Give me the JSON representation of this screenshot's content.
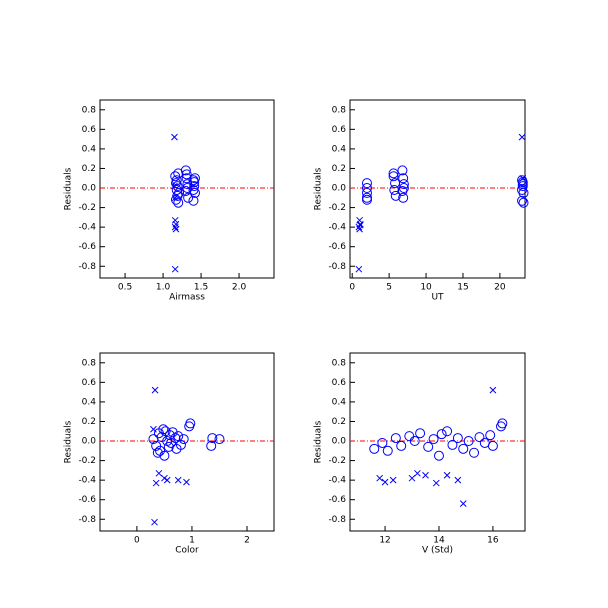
{
  "chart_data": [
    {
      "type": "scatter",
      "xlabel": "Airmass",
      "ylabel": "Residuals",
      "xlim": [
        0.17,
        2.46
      ],
      "ylim": [
        -0.92,
        0.9
      ],
      "xticks": [
        0.5,
        {
          "value": 1,
          "label": "1.0"
        },
        1.5,
        {
          "value": 2,
          "label": "2.0"
        }
      ],
      "yticks": [
        -0.8,
        -0.6,
        -0.4,
        -0.2,
        {
          "value": 0,
          "label": "0.0"
        },
        0.2,
        0.4,
        0.6,
        0.8
      ],
      "hline": 0,
      "hline_color": "#ff0000",
      "series": [
        {
          "marker": "o",
          "color": "#0000ff",
          "x": [
            1.16,
            1.17,
            1.18,
            1.19,
            1.2,
            1.17,
            1.19,
            1.21,
            1.18,
            1.2,
            1.3,
            1.31,
            1.32,
            1.3,
            1.33,
            1.31,
            1.32,
            1.4,
            1.41,
            1.42,
            1.4,
            1.41,
            1.42,
            1.4
          ],
          "values": [
            0.12,
            0.05,
            -0.02,
            -0.08,
            0.15,
            -0.12,
            0.02,
            -0.05,
            0.08,
            -0.15,
            0.18,
            0.1,
            0.04,
            -0.03,
            -0.1,
            0.14,
            0.0,
            0.08,
            0.02,
            -0.05,
            -0.13,
            0.06,
            0.1,
            -0.02
          ]
        },
        {
          "marker": "x",
          "color": "#0000ff",
          "x": [
            1.15,
            1.16,
            1.17,
            1.16,
            1.17,
            1.16,
            1.15,
            1.16
          ],
          "values": [
            0.52,
            -0.33,
            -0.37,
            -0.4,
            -0.42,
            -0.83,
            0.02,
            -0.1
          ]
        }
      ]
    },
    {
      "type": "scatter",
      "xlabel": "UT",
      "ylabel": "Residuals",
      "xlim": [
        -0.3,
        23.4
      ],
      "ylim": [
        -0.92,
        0.9
      ],
      "xticks": [
        0,
        5,
        10,
        15,
        20
      ],
      "yticks": [
        -0.8,
        -0.6,
        -0.4,
        -0.2,
        {
          "value": 0,
          "label": "0.0"
        },
        0.2,
        0.4,
        0.6,
        0.8
      ],
      "hline": 0,
      "hline_color": "#ff0000",
      "series": [
        {
          "marker": "o",
          "color": "#0000ff",
          "x": [
            2,
            2,
            2,
            2,
            2,
            5.6,
            5.8,
            5.7,
            5.9,
            5.6,
            6.8,
            6.9,
            7,
            6.8,
            6.9,
            7,
            23,
            23.1,
            23.2,
            23,
            23.1,
            23.2,
            23,
            23.1
          ],
          "values": [
            0.05,
            0.0,
            -0.05,
            -0.1,
            -0.12,
            0.12,
            0.05,
            -0.02,
            -0.08,
            0.15,
            0.18,
            0.1,
            0.04,
            -0.03,
            -0.1,
            0.0,
            0.08,
            0.02,
            -0.05,
            -0.13,
            0.06,
            -0.15,
            -0.02,
            0.04
          ]
        },
        {
          "marker": "x",
          "color": "#0000ff",
          "x": [
            1,
            1.1,
            0.9,
            1,
            1.1,
            0.9,
            23,
            23.1
          ],
          "values": [
            -0.33,
            -0.37,
            -0.4,
            -0.42,
            -0.38,
            -0.83,
            0.52,
            0.1
          ]
        }
      ]
    },
    {
      "type": "scatter",
      "xlabel": "Color",
      "ylabel": "Residuals",
      "xlim": [
        -0.67,
        2.49
      ],
      "ylim": [
        -0.92,
        0.9
      ],
      "xticks": [
        0,
        1,
        2
      ],
      "yticks": [
        -0.8,
        -0.6,
        -0.4,
        -0.2,
        {
          "value": 0,
          "label": "0.0"
        },
        0.2,
        0.4,
        0.6,
        0.8
      ],
      "hline": 0,
      "hline_color": "#ff0000",
      "series": [
        {
          "marker": "o",
          "color": "#0000ff",
          "x": [
            0.3,
            0.35,
            0.4,
            0.42,
            0.45,
            0.5,
            0.52,
            0.55,
            0.58,
            0.6,
            0.62,
            0.65,
            0.7,
            0.72,
            0.75,
            0.8,
            0.85,
            0.95,
            0.97,
            1.35,
            1.37,
            1.5,
            0.38,
            0.48
          ],
          "values": [
            0.02,
            -0.05,
            0.08,
            -0.1,
            0.04,
            -0.15,
            0.1,
            0.0,
            -0.06,
            0.06,
            -0.02,
            0.09,
            0.03,
            -0.08,
            0.05,
            -0.04,
            0.02,
            0.15,
            0.18,
            -0.05,
            0.03,
            0.02,
            -0.12,
            0.12
          ]
        },
        {
          "marker": "x",
          "color": "#0000ff",
          "x": [
            0.33,
            0.32,
            0.4,
            0.5,
            0.55,
            0.75,
            0.9,
            0.35,
            0.3
          ],
          "values": [
            0.52,
            -0.83,
            -0.33,
            -0.38,
            -0.4,
            -0.4,
            -0.42,
            -0.43,
            0.12
          ]
        }
      ]
    },
    {
      "type": "scatter",
      "xlabel": "V (Std)",
      "ylabel": "Residuals",
      "xlim": [
        10.7,
        17.19
      ],
      "ylim": [
        -0.92,
        0.9
      ],
      "xticks": [
        12,
        14,
        16
      ],
      "yticks": [
        -0.8,
        -0.6,
        -0.4,
        -0.2,
        {
          "value": 0,
          "label": "0.0"
        },
        0.2,
        0.4,
        0.6,
        0.8
      ],
      "hline": 0,
      "hline_color": "#ff0000",
      "series": [
        {
          "marker": "o",
          "color": "#0000ff",
          "x": [
            11.6,
            11.9,
            12.1,
            12.4,
            12.6,
            12.9,
            13.1,
            13.3,
            13.6,
            13.8,
            14.0,
            14.1,
            14.3,
            14.5,
            14.7,
            14.9,
            15.1,
            15.3,
            15.5,
            15.7,
            15.9,
            16.0,
            16.3,
            16.35
          ],
          "values": [
            -0.08,
            -0.02,
            -0.1,
            0.03,
            -0.05,
            0.05,
            0.0,
            0.08,
            -0.06,
            0.02,
            -0.15,
            0.07,
            0.1,
            -0.04,
            0.03,
            -0.08,
            0.0,
            -0.12,
            0.04,
            -0.02,
            0.06,
            -0.05,
            0.15,
            0.18
          ]
        },
        {
          "marker": "x",
          "color": "#0000ff",
          "x": [
            11.8,
            12.0,
            12.3,
            13.0,
            13.2,
            13.5,
            13.9,
            14.3,
            14.7,
            14.9,
            16.0
          ],
          "values": [
            -0.38,
            -0.42,
            -0.4,
            -0.38,
            -0.33,
            -0.35,
            -0.43,
            -0.35,
            -0.4,
            -0.64,
            0.52
          ]
        }
      ]
    }
  ]
}
